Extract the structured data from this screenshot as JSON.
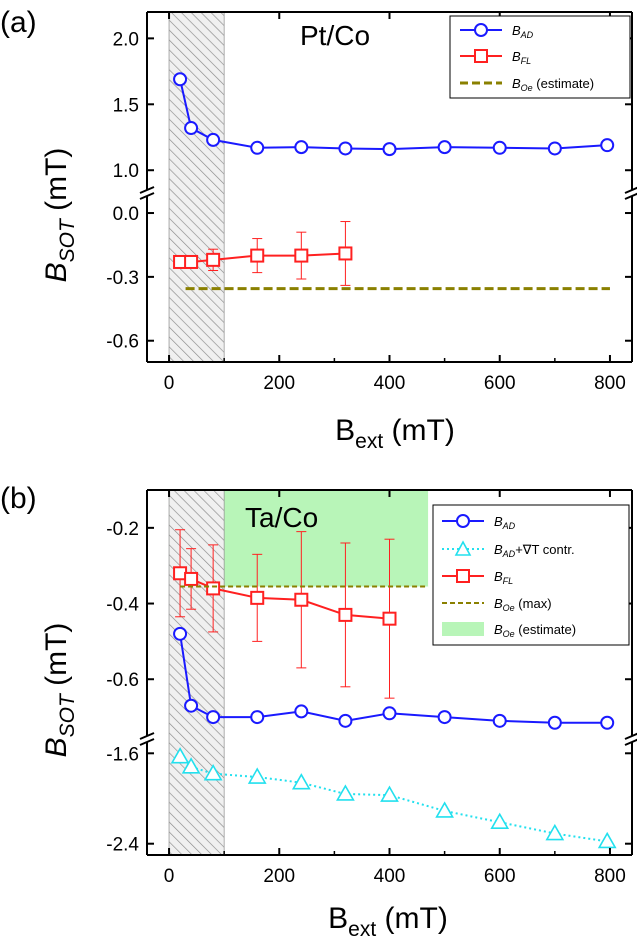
{
  "colors": {
    "ad": "#1a1aff",
    "fl": "#ff2020",
    "oe": "#8a8000",
    "grad": "#22e0ee",
    "green": "#b8f5b8",
    "hatch": "#888888"
  },
  "chart_data": [
    {
      "type": "line",
      "panel_label": "(a)",
      "material": "Pt/Co",
      "xlabel_main": "B",
      "xlabel_sub": "ext",
      "xlabel_unit": " (mT)",
      "ylabel_main": "B",
      "ylabel_sub": "SOT",
      "ylabel_unit": " (mT)",
      "xlim": [
        -40,
        840
      ],
      "xticks": [
        0,
        200,
        400,
        600,
        800
      ],
      "xtick_labels": [
        "0",
        "200",
        "400",
        "600",
        "800"
      ],
      "ylim_upper": [
        0.85,
        2.2
      ],
      "ylim_lower": [
        -0.7,
        0.08
      ],
      "yticks_upper": [
        1.0,
        1.5,
        2.0
      ],
      "ytick_labels_upper": [
        "1.0",
        "1.5",
        "2.0"
      ],
      "yticks_lower": [
        0.0,
        -0.3,
        -0.6
      ],
      "ytick_labels_lower": [
        "0.0",
        "-0.3",
        "-0.6"
      ],
      "shaded_region": {
        "x": [
          0,
          100
        ]
      },
      "series": [
        {
          "name_main": "B",
          "name_sub": "AD",
          "marker": "circle",
          "segment": "upper",
          "x": [
            20,
            40,
            80,
            160,
            240,
            320,
            400,
            500,
            600,
            700,
            795
          ],
          "y": [
            1.69,
            1.32,
            1.23,
            1.17,
            1.175,
            1.165,
            1.16,
            1.175,
            1.17,
            1.165,
            1.19
          ]
        },
        {
          "name_main": "B",
          "name_sub": "FL",
          "marker": "square",
          "segment": "lower",
          "x": [
            20,
            40,
            80,
            160,
            240,
            320
          ],
          "y": [
            -0.23,
            -0.23,
            -0.22,
            -0.2,
            -0.2,
            -0.19
          ],
          "err": [
            0.01,
            0.01,
            0.05,
            0.08,
            0.11,
            0.15
          ]
        },
        {
          "name_main": "B",
          "name_sub": "Oe",
          "name_suffix": " (estimate)",
          "line": "dashed",
          "segment": "lower",
          "x": [
            30,
            800
          ],
          "y": [
            -0.355,
            -0.355
          ]
        }
      ]
    },
    {
      "type": "line",
      "panel_label": "(b)",
      "material": "Ta/Co",
      "xlabel_main": "B",
      "xlabel_sub": "ext",
      "xlabel_unit": " (mT)",
      "ylabel_main": "B",
      "ylabel_sub": "SOT",
      "ylabel_unit": " (mT)",
      "xlim": [
        -40,
        840
      ],
      "xticks": [
        0,
        200,
        400,
        600,
        800
      ],
      "xtick_labels": [
        "0",
        "200",
        "400",
        "600",
        "800"
      ],
      "ylim_upper": [
        -0.75,
        -0.1
      ],
      "ylim_lower": [
        -2.5,
        -1.5
      ],
      "yticks_upper": [
        -0.2,
        -0.4,
        -0.6
      ],
      "ytick_labels_upper": [
        "-0.2",
        "-0.4",
        "-0.6"
      ],
      "yticks_lower": [
        -1.6,
        -2.4
      ],
      "ytick_labels_lower": [
        "-1.6",
        "-2.4"
      ],
      "shaded_region": {
        "x": [
          0,
          100
        ]
      },
      "green_region": {
        "x": [
          0,
          470
        ],
        "y": [
          -0.355,
          -0.1
        ]
      },
      "series": [
        {
          "name_main": "B",
          "name_sub": "AD",
          "marker": "circle",
          "segment": "upper",
          "x": [
            20,
            40,
            80,
            160,
            240,
            320,
            400,
            500,
            600,
            700,
            795
          ],
          "y": [
            -0.48,
            -0.67,
            -0.7,
            -0.7,
            -0.685,
            -0.71,
            -0.69,
            -0.7,
            -0.71,
            -0.715,
            -0.715
          ]
        },
        {
          "name_main": "B",
          "name_sub": "AD",
          "name_suffix": "+∇T contr.",
          "marker": "triangle",
          "line": "dotted",
          "segment": "lower",
          "x": [
            20,
            40,
            80,
            160,
            240,
            320,
            400,
            500,
            600,
            700,
            795
          ],
          "y": [
            -1.63,
            -1.72,
            -1.78,
            -1.81,
            -1.86,
            -1.96,
            -1.97,
            -2.11,
            -2.21,
            -2.31,
            -2.38
          ]
        },
        {
          "name_main": "B",
          "name_sub": "FL",
          "marker": "square",
          "segment": "upper",
          "x": [
            20,
            40,
            80,
            160,
            240,
            320,
            400
          ],
          "y": [
            -0.32,
            -0.335,
            -0.36,
            -0.385,
            -0.39,
            -0.43,
            -0.44
          ],
          "err": [
            0.115,
            0.08,
            0.115,
            0.115,
            0.18,
            0.19,
            0.21
          ]
        },
        {
          "name_main": "B",
          "name_sub": "Oe",
          "name_suffix": " (max)",
          "line": "dashed",
          "segment": "upper",
          "x": [
            20,
            470
          ],
          "y": [
            -0.355,
            -0.355
          ]
        },
        {
          "name_main": "B",
          "name_sub": "Oe",
          "name_suffix": " (estimate)",
          "legend_type": "patch"
        }
      ]
    }
  ]
}
